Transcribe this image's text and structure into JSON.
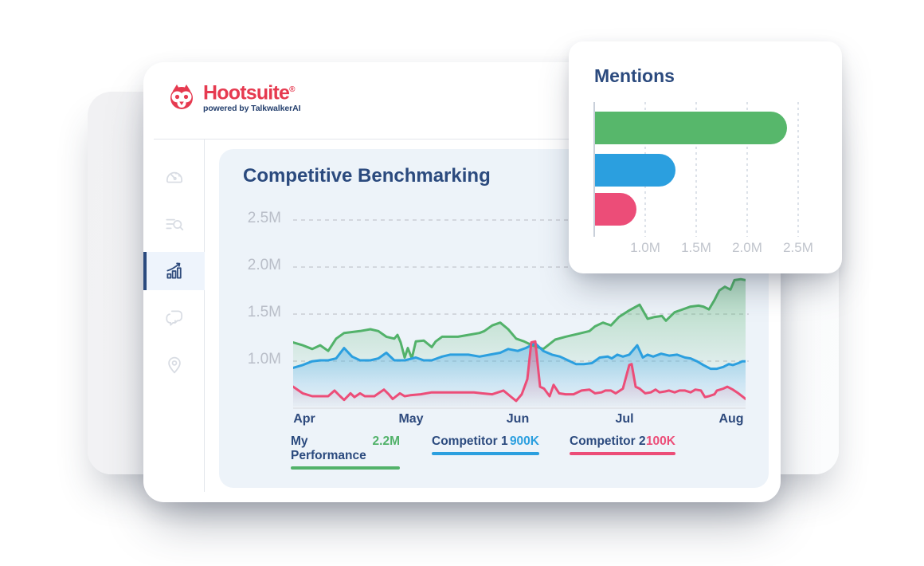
{
  "logo": {
    "brand": "Hootsuite",
    "registered": "®",
    "tagline": "powered by TalkwalkerAI"
  },
  "colors": {
    "brand_red": "#e63a50",
    "navy": "#2b4a7e",
    "green": "#52b26a",
    "blue": "#2b9fdf",
    "pink": "#ec4d78",
    "panel_bg": "#edf3f9",
    "axis_gray": "#b9bec8"
  },
  "sidebar": {
    "items": [
      {
        "id": "dashboard",
        "icon": "gauge-icon",
        "active": false
      },
      {
        "id": "search",
        "icon": "list-search-icon",
        "active": false
      },
      {
        "id": "analytics",
        "icon": "bar-chart-growth-icon",
        "active": true
      },
      {
        "id": "messages",
        "icon": "chat-bubbles-icon",
        "active": false
      },
      {
        "id": "location",
        "icon": "location-pin-icon",
        "active": false
      }
    ]
  },
  "benchmarking": {
    "title": "Competitive Benchmarking",
    "y_ticks": [
      {
        "label": "2.5M",
        "value": 2.5
      },
      {
        "label": "2.0M",
        "value": 2.0
      },
      {
        "label": "1.5M",
        "value": 1.5
      },
      {
        "label": "1.0M",
        "value": 1.0
      }
    ],
    "months": [
      "Apr",
      "May",
      "Jun",
      "Jul",
      "Aug"
    ],
    "legend": [
      {
        "label": "My Performance",
        "value": "2.2M",
        "color": "#52b26a"
      },
      {
        "label": "Competitor 1",
        "value": "900K",
        "color": "#2b9fdf"
      },
      {
        "label": "Competitor 2",
        "value": "100K",
        "color": "#ec4d78"
      }
    ]
  },
  "mentions": {
    "title": "Mentions",
    "ticks": [
      {
        "label": "1.0M",
        "value": 1.0
      },
      {
        "label": "1.5M",
        "value": 1.5
      },
      {
        "label": "2.0M",
        "value": 2.0
      },
      {
        "label": "2.5M",
        "value": 2.5
      }
    ]
  },
  "chart_data": [
    {
      "id": "competitive-benchmarking",
      "type": "area",
      "title": "Competitive Benchmarking",
      "units": "mentions, millions",
      "x": {
        "tick_labels": [
          "Apr",
          "May",
          "Jun",
          "Jul",
          "Aug"
        ],
        "note": "points use px offset 0-568 across Apr-Aug"
      },
      "y": {
        "tick_labels": [
          "1.0M",
          "1.5M",
          "2.0M",
          "2.5M"
        ],
        "range_m": [
          0.5,
          2.58
        ],
        "grid": "dashed-horizontal"
      },
      "legend_position": "bottom",
      "series": [
        {
          "name": "My Performance",
          "legend_value": "2.2M",
          "color": "#52b26a",
          "points": [
            [
              0,
              1.19
            ],
            [
              12,
              1.16
            ],
            [
              24,
              1.12
            ],
            [
              34,
              1.16
            ],
            [
              44,
              1.1
            ],
            [
              54,
              1.23
            ],
            [
              64,
              1.29
            ],
            [
              74,
              1.3
            ],
            [
              84,
              1.31
            ],
            [
              97,
              1.33
            ],
            [
              107,
              1.31
            ],
            [
              117,
              1.25
            ],
            [
              127,
              1.23
            ],
            [
              131,
              1.27
            ],
            [
              135,
              1.19
            ],
            [
              140,
              1.03
            ],
            [
              144,
              1.13
            ],
            [
              149,
              1.02
            ],
            [
              154,
              1.2
            ],
            [
              164,
              1.21
            ],
            [
              174,
              1.14
            ],
            [
              179,
              1.2
            ],
            [
              187,
              1.25
            ],
            [
              197,
              1.25
            ],
            [
              207,
              1.25
            ],
            [
              220,
              1.27
            ],
            [
              234,
              1.29
            ],
            [
              240,
              1.31
            ],
            [
              250,
              1.37
            ],
            [
              260,
              1.4
            ],
            [
              270,
              1.33
            ],
            [
              280,
              1.23
            ],
            [
              290,
              1.2
            ],
            [
              300,
              1.16
            ],
            [
              314,
              1.12
            ],
            [
              329,
              1.22
            ],
            [
              342,
              1.25
            ],
            [
              357,
              1.28
            ],
            [
              372,
              1.31
            ],
            [
              379,
              1.36
            ],
            [
              389,
              1.4
            ],
            [
              399,
              1.37
            ],
            [
              409,
              1.46
            ],
            [
              422,
              1.53
            ],
            [
              435,
              1.59
            ],
            [
              445,
              1.44
            ],
            [
              454,
              1.46
            ],
            [
              463,
              1.47
            ],
            [
              468,
              1.42
            ],
            [
              479,
              1.51
            ],
            [
              489,
              1.54
            ],
            [
              499,
              1.57
            ],
            [
              509,
              1.58
            ],
            [
              515,
              1.57
            ],
            [
              522,
              1.54
            ],
            [
              529,
              1.64
            ],
            [
              535,
              1.74
            ],
            [
              542,
              1.78
            ],
            [
              549,
              1.75
            ],
            [
              554,
              1.85
            ],
            [
              562,
              1.86
            ],
            [
              568,
              1.85
            ]
          ]
        },
        {
          "name": "Competitor 1",
          "legend_value": "900K",
          "color": "#2b9fdf",
          "points": [
            [
              0,
              0.92
            ],
            [
              12,
              0.95
            ],
            [
              24,
              0.99
            ],
            [
              34,
              1.0
            ],
            [
              44,
              1.0
            ],
            [
              54,
              1.02
            ],
            [
              64,
              1.13
            ],
            [
              74,
              1.04
            ],
            [
              84,
              1.0
            ],
            [
              97,
              1.0
            ],
            [
              107,
              1.02
            ],
            [
              117,
              1.08
            ],
            [
              127,
              1.0
            ],
            [
              140,
              1.0
            ],
            [
              154,
              1.03
            ],
            [
              164,
              1.0
            ],
            [
              174,
              1.0
            ],
            [
              187,
              1.04
            ],
            [
              197,
              1.06
            ],
            [
              207,
              1.06
            ],
            [
              220,
              1.06
            ],
            [
              234,
              1.04
            ],
            [
              247,
              1.06
            ],
            [
              260,
              1.08
            ],
            [
              270,
              1.12
            ],
            [
              282,
              1.1
            ],
            [
              292,
              1.13
            ],
            [
              304,
              1.18
            ],
            [
              314,
              1.1
            ],
            [
              325,
              1.06
            ],
            [
              335,
              1.04
            ],
            [
              345,
              1.0
            ],
            [
              355,
              0.96
            ],
            [
              365,
              0.96
            ],
            [
              375,
              0.97
            ],
            [
              385,
              1.03
            ],
            [
              395,
              1.04
            ],
            [
              400,
              1.02
            ],
            [
              407,
              1.06
            ],
            [
              414,
              1.04
            ],
            [
              422,
              1.06
            ],
            [
              432,
              1.16
            ],
            [
              439,
              1.03
            ],
            [
              445,
              1.06
            ],
            [
              452,
              1.04
            ],
            [
              462,
              1.07
            ],
            [
              472,
              1.05
            ],
            [
              482,
              1.06
            ],
            [
              492,
              1.03
            ],
            [
              499,
              1.02
            ],
            [
              507,
              0.99
            ],
            [
              515,
              0.95
            ],
            [
              524,
              0.91
            ],
            [
              532,
              0.91
            ],
            [
              540,
              0.93
            ],
            [
              547,
              0.96
            ],
            [
              552,
              0.95
            ],
            [
              559,
              0.97
            ],
            [
              564,
              0.99
            ],
            [
              568,
              0.99
            ]
          ]
        },
        {
          "name": "Competitor 2",
          "legend_value": "100K",
          "color": "#ec4d78",
          "points": [
            [
              0,
              0.72
            ],
            [
              12,
              0.65
            ],
            [
              24,
              0.62
            ],
            [
              34,
              0.62
            ],
            [
              44,
              0.62
            ],
            [
              52,
              0.68
            ],
            [
              59,
              0.62
            ],
            [
              64,
              0.58
            ],
            [
              72,
              0.65
            ],
            [
              77,
              0.61
            ],
            [
              84,
              0.65
            ],
            [
              90,
              0.62
            ],
            [
              102,
              0.62
            ],
            [
              114,
              0.69
            ],
            [
              120,
              0.64
            ],
            [
              125,
              0.59
            ],
            [
              134,
              0.65
            ],
            [
              140,
              0.62
            ],
            [
              147,
              0.63
            ],
            [
              160,
              0.64
            ],
            [
              174,
              0.66
            ],
            [
              187,
              0.66
            ],
            [
              200,
              0.66
            ],
            [
              214,
              0.66
            ],
            [
              227,
              0.66
            ],
            [
              237,
              0.65
            ],
            [
              250,
              0.64
            ],
            [
              264,
              0.68
            ],
            [
              274,
              0.61
            ],
            [
              280,
              0.57
            ],
            [
              287,
              0.64
            ],
            [
              294,
              0.8
            ],
            [
              299,
              1.19
            ],
            [
              304,
              1.2
            ],
            [
              310,
              0.72
            ],
            [
              315,
              0.7
            ],
            [
              322,
              0.62
            ],
            [
              327,
              0.74
            ],
            [
              334,
              0.65
            ],
            [
              342,
              0.64
            ],
            [
              352,
              0.64
            ],
            [
              362,
              0.68
            ],
            [
              372,
              0.69
            ],
            [
              379,
              0.65
            ],
            [
              387,
              0.66
            ],
            [
              392,
              0.68
            ],
            [
              399,
              0.68
            ],
            [
              405,
              0.65
            ],
            [
              414,
              0.7
            ],
            [
              422,
              0.95
            ],
            [
              425,
              0.96
            ],
            [
              430,
              0.72
            ],
            [
              435,
              0.7
            ],
            [
              442,
              0.65
            ],
            [
              449,
              0.66
            ],
            [
              455,
              0.69
            ],
            [
              460,
              0.66
            ],
            [
              467,
              0.67
            ],
            [
              472,
              0.68
            ],
            [
              479,
              0.66
            ],
            [
              485,
              0.68
            ],
            [
              492,
              0.68
            ],
            [
              499,
              0.66
            ],
            [
              505,
              0.69
            ],
            [
              512,
              0.68
            ],
            [
              517,
              0.61
            ],
            [
              522,
              0.62
            ],
            [
              529,
              0.64
            ],
            [
              532,
              0.68
            ],
            [
              540,
              0.7
            ],
            [
              545,
              0.72
            ],
            [
              552,
              0.69
            ],
            [
              559,
              0.65
            ],
            [
              565,
              0.61
            ],
            [
              568,
              0.59
            ]
          ]
        }
      ]
    },
    {
      "id": "mentions",
      "type": "bar",
      "title": "Mentions",
      "orientation": "horizontal",
      "units": "mentions, millions",
      "x": {
        "tick_labels": [
          "1.0M",
          "1.5M",
          "2.0M",
          "2.5M"
        ],
        "tick_values_m": [
          1.0,
          1.5,
          2.0,
          2.5
        ],
        "range_m": [
          0.5,
          2.6
        ],
        "grid": "dotted-vertical"
      },
      "categories": [
        "My Performance",
        "Competitor 1",
        "Competitor 2"
      ],
      "values_m": [
        2.38,
        1.29,
        0.91
      ],
      "colors": [
        "#57b76b",
        "#2b9fdf",
        "#ec4d78"
      ]
    }
  ]
}
